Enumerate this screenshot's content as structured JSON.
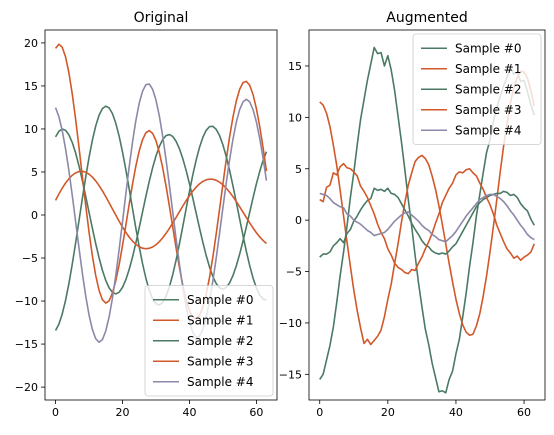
{
  "chart_data": [
    {
      "type": "line",
      "title": "Original",
      "xlabel": "",
      "ylabel": "",
      "xlim": [
        -3.15,
        66.15
      ],
      "ylim": [
        -21.5,
        21.5
      ],
      "xticks": [
        0,
        20,
        40,
        60
      ],
      "yticks": [
        -20,
        -15,
        -10,
        -5,
        0,
        5,
        10,
        15,
        20
      ],
      "grid": false,
      "legend_position": "lower-right",
      "x": [
        0,
        1,
        2,
        3,
        4,
        5,
        6,
        7,
        8,
        9,
        10,
        11,
        12,
        13,
        14,
        15,
        16,
        17,
        18,
        19,
        20,
        21,
        22,
        23,
        24,
        25,
        26,
        27,
        28,
        29,
        30,
        31,
        32,
        33,
        34,
        35,
        36,
        37,
        38,
        39,
        40,
        41,
        42,
        43,
        44,
        45,
        46,
        47,
        48,
        49,
        50,
        51,
        52,
        53,
        54,
        55,
        56,
        57,
        58,
        59,
        60,
        61,
        62,
        63
      ],
      "series": [
        {
          "name": "Sample #0",
          "color": "#4a7a64",
          "values": [
            9.08,
            9.73,
            9.99,
            9.84,
            9.31,
            8.42,
            7.2,
            5.71,
            4.02,
            2.19,
            0.32,
            -1.54,
            -3.33,
            -4.98,
            -6.42,
            -7.6,
            -8.47,
            -9.0,
            -9.17,
            -8.97,
            -8.41,
            -7.52,
            -6.32,
            -4.88,
            -3.23,
            -1.46,
            0.38,
            2.2,
            3.92,
            5.5,
            6.86,
            7.96,
            8.76,
            9.23,
            9.35,
            9.13,
            8.57,
            7.71,
            6.56,
            5.19,
            3.64,
            1.97,
            0.23,
            -1.5,
            -3.17,
            -4.71,
            -6.06,
            -7.17,
            -7.98,
            -8.47,
            -8.62,
            -8.42,
            -7.88,
            -7.03,
            -5.9,
            -4.54,
            -3.01,
            -1.37,
            0.32,
            2.01,
            3.62,
            5.08,
            6.35,
            7.36
          ]
        },
        {
          "name": "Sample #1",
          "color": "#d2582a",
          "values": [
            19.36,
            19.85,
            19.5,
            18.36,
            16.51,
            14.05,
            11.12,
            7.88,
            4.5,
            1.16,
            -1.97,
            -4.74,
            -7.03,
            -8.76,
            -9.84,
            -10.24,
            -9.97,
            -9.08,
            -7.64,
            -5.76,
            -3.56,
            -1.17,
            1.27,
            3.6,
            5.71,
            7.46,
            8.77,
            9.57,
            9.81,
            9.49,
            8.63,
            7.27,
            5.49,
            3.38,
            1.05,
            -1.38,
            -3.8,
            -6.1,
            -8.15,
            -9.85,
            -11.12,
            -11.87,
            -12.06,
            -11.68,
            -10.72,
            -9.22,
            -7.24,
            -4.86,
            -2.17,
            0.7,
            3.62,
            6.46,
            9.09,
            11.39,
            13.26,
            14.61,
            15.38,
            15.53,
            15.06,
            13.99,
            12.36,
            10.26,
            7.8,
            5.1
          ]
        },
        {
          "name": "Sample #2",
          "color": "#4a7a64",
          "values": [
            -13.42,
            -12.69,
            -11.5,
            -9.9,
            -7.94,
            -5.7,
            -3.24,
            -0.67,
            1.91,
            4.39,
            6.68,
            8.69,
            10.35,
            11.59,
            12.36,
            12.65,
            12.45,
            11.78,
            10.66,
            9.16,
            7.33,
            5.26,
            3.03,
            0.73,
            -1.55,
            -3.71,
            -5.68,
            -7.38,
            -8.75,
            -9.74,
            -10.32,
            -10.46,
            -10.16,
            -9.45,
            -8.36,
            -6.94,
            -5.25,
            -3.36,
            -1.35,
            0.71,
            2.74,
            4.66,
            6.39,
            7.86,
            9.02,
            9.84,
            10.27,
            10.31,
            9.95,
            9.22,
            8.15,
            6.78,
            5.17,
            3.38,
            1.47,
            -0.47,
            -2.4,
            -4.23,
            -5.89,
            -7.33,
            -8.48,
            -9.31,
            -9.78,
            -9.88
          ]
        },
        {
          "name": "Sample #3",
          "color": "#d2582a",
          "values": [
            1.7,
            2.44,
            3.12,
            3.72,
            4.22,
            4.62,
            4.9,
            5.05,
            5.08,
            4.98,
            4.75,
            4.41,
            3.96,
            3.42,
            2.81,
            2.14,
            1.43,
            0.7,
            -0.02,
            -0.73,
            -1.4,
            -2.02,
            -2.57,
            -3.04,
            -3.41,
            -3.69,
            -3.86,
            -3.92,
            -3.87,
            -3.72,
            -3.46,
            -3.1,
            -2.66,
            -2.14,
            -1.56,
            -0.94,
            -0.29,
            0.37,
            1.03,
            1.66,
            2.25,
            2.78,
            3.24,
            3.62,
            3.9,
            4.09,
            4.17,
            4.15,
            4.03,
            3.81,
            3.51,
            3.12,
            2.65,
            2.13,
            1.56,
            0.95,
            0.33,
            -0.3,
            -0.92,
            -1.51,
            -2.06,
            -2.55,
            -2.97,
            -3.31
          ]
        },
        {
          "name": "Sample #4",
          "color": "#8c88a8",
          "values": [
            12.48,
            11.42,
            9.8,
            7.67,
            5.12,
            2.26,
            -0.76,
            -3.81,
            -6.74,
            -9.38,
            -11.61,
            -13.3,
            -14.38,
            -14.78,
            -14.48,
            -13.48,
            -11.85,
            -9.66,
            -7.0,
            -4.0,
            -0.8,
            2.46,
            5.61,
            8.5,
            11.0,
            13.0,
            14.4,
            15.15,
            15.22,
            14.61,
            13.36,
            11.52,
            9.18,
            6.45,
            3.47,
            0.36,
            -2.74,
            -5.7,
            -8.38,
            -10.66,
            -12.44,
            -13.64,
            -14.2,
            -14.09,
            -13.32,
            -11.94,
            -10.01,
            -7.65,
            -4.97,
            -2.09,
            0.86,
            3.74,
            6.44,
            8.82,
            10.79,
            12.25,
            13.15,
            13.45,
            13.14,
            12.24,
            10.8,
            8.88,
            6.58,
            3.99
          ]
        }
      ]
    },
    {
      "type": "line",
      "title": "Augmented",
      "xlabel": "",
      "ylabel": "",
      "xlim": [
        -3.15,
        66.15
      ],
      "ylim": [
        -17.5,
        18.5
      ],
      "xticks": [
        0,
        20,
        40,
        60
      ],
      "yticks": [
        -15,
        -10,
        -5,
        0,
        5,
        10,
        15
      ],
      "grid": false,
      "legend_position": "upper-right",
      "x": [
        0,
        1,
        2,
        3,
        4,
        5,
        6,
        7,
        8,
        9,
        10,
        11,
        12,
        13,
        14,
        15,
        16,
        17,
        18,
        19,
        20,
        21,
        22,
        23,
        24,
        25,
        26,
        27,
        28,
        29,
        30,
        31,
        32,
        33,
        34,
        35,
        36,
        37,
        38,
        39,
        40,
        41,
        42,
        43,
        44,
        45,
        46,
        47,
        48,
        49,
        50,
        51,
        52,
        53,
        54,
        55,
        56,
        57,
        58,
        59,
        60,
        61,
        62,
        63
      ],
      "series": [
        {
          "name": "Sample #0",
          "color": "#4a7a64",
          "values": [
            -15.5,
            -15.0,
            -13.6,
            -12.2,
            -10.4,
            -8.0,
            -5.4,
            -3.1,
            -0.6,
            2.2,
            4.6,
            7.3,
            9.8,
            11.7,
            13.6,
            15.2,
            16.8,
            16.2,
            16.3,
            15.0,
            16.0,
            14.6,
            12.6,
            10.1,
            7.6,
            4.9,
            2.0,
            -0.6,
            -3.4,
            -6.1,
            -8.4,
            -10.6,
            -12.1,
            -13.9,
            -15.3,
            -16.7,
            -16.6,
            -16.8,
            -15.5,
            -14.7,
            -13.0,
            -11.6,
            -9.4,
            -7.1,
            -4.5,
            -2.2,
            0.4,
            2.5,
            4.6,
            6.6,
            7.8,
            9.6,
            11.0,
            12.0,
            13.1,
            13.9,
            14.8,
            14.2,
            14.4,
            13.5,
            13.6,
            12.5,
            11.2,
            10.2
          ]
        },
        {
          "name": "Sample #1",
          "color": "#d2582a",
          "values": [
            11.5,
            11.2,
            10.4,
            9.1,
            7.3,
            5.3,
            2.9,
            0.4,
            -2.1,
            -4.5,
            -6.8,
            -8.8,
            -10.5,
            -12.0,
            -11.6,
            -12.1,
            -11.7,
            -11.3,
            -10.7,
            -9.4,
            -7.7,
            -6.2,
            -4.2,
            -2.3,
            -0.2,
            1.7,
            3.4,
            4.6,
            5.7,
            6.1,
            6.3,
            6.0,
            5.4,
            4.3,
            3.0,
            1.4,
            -0.4,
            -2.3,
            -4.2,
            -6.0,
            -7.7,
            -9.1,
            -10.2,
            -10.9,
            -11.2,
            -11.1,
            -10.3,
            -9.1,
            -7.4,
            -5.4,
            -3.1,
            -0.6,
            2.0,
            4.7,
            7.2,
            9.4,
            11.4,
            12.9,
            13.9,
            14.5,
            14.4,
            13.8,
            12.6,
            11.1
          ]
        },
        {
          "name": "Sample #2",
          "color": "#4a7a64",
          "values": [
            -3.6,
            -3.3,
            -3.3,
            -3.1,
            -2.5,
            -2.2,
            -1.8,
            -2.2,
            -1.3,
            -0.9,
            -0.1,
            0.4,
            1.0,
            1.5,
            1.9,
            2.1,
            3.1,
            2.9,
            3.0,
            2.8,
            3.1,
            2.6,
            2.5,
            2.2,
            1.6,
            1.0,
            0.4,
            -0.3,
            -0.9,
            -1.4,
            -2.0,
            -2.4,
            -2.6,
            -3.0,
            -3.2,
            -3.3,
            -3.2,
            -3.3,
            -3.0,
            -2.6,
            -2.3,
            -1.7,
            -1.1,
            -0.5,
            0.1,
            0.7,
            1.3,
            1.7,
            2.0,
            2.2,
            2.4,
            2.5,
            2.6,
            2.6,
            2.8,
            2.7,
            2.4,
            2.5,
            2.2,
            1.6,
            1.2,
            0.9,
            0.1,
            -0.5
          ]
        },
        {
          "name": "Sample #3",
          "color": "#d2582a",
          "values": [
            2.0,
            1.8,
            3.2,
            3.4,
            4.6,
            4.4,
            5.2,
            5.5,
            5.1,
            5.0,
            4.7,
            4.3,
            3.3,
            2.8,
            2.2,
            1.4,
            0.6,
            -0.4,
            -1.2,
            -1.8,
            -2.8,
            -3.4,
            -4.2,
            -4.6,
            -4.8,
            -5.1,
            -5.2,
            -4.8,
            -4.9,
            -4.2,
            -3.6,
            -2.8,
            -2.1,
            -1.3,
            -0.3,
            0.6,
            1.7,
            2.4,
            3.1,
            3.6,
            4.4,
            4.7,
            4.6,
            4.9,
            5.0,
            4.6,
            4.3,
            3.6,
            3.0,
            2.2,
            1.5,
            0.6,
            -0.5,
            -1.3,
            -2.1,
            -2.8,
            -3.2,
            -3.7,
            -3.5,
            -3.9,
            -3.6,
            -3.4,
            -3.1,
            -2.3
          ]
        },
        {
          "name": "Sample #4",
          "color": "#8c88a8",
          "values": [
            2.6,
            2.5,
            2.4,
            2.1,
            1.7,
            1.5,
            1.3,
            1.2,
            0.6,
            0.4,
            0.0,
            -0.2,
            -0.4,
            -0.7,
            -1.0,
            -1.2,
            -1.5,
            -1.4,
            -1.3,
            -1.2,
            -0.9,
            -0.5,
            -0.1,
            0.2,
            0.5,
            0.7,
            0.8,
            0.5,
            0.2,
            -0.1,
            -0.5,
            -0.8,
            -1.0,
            -1.4,
            -1.6,
            -1.9,
            -2.0,
            -2.1,
            -1.8,
            -1.5,
            -1.1,
            -0.6,
            -0.1,
            0.4,
            0.8,
            1.2,
            1.6,
            2.0,
            2.2,
            2.4,
            2.5,
            2.5,
            2.3,
            2.1,
            1.8,
            1.4,
            0.9,
            0.5,
            0.0,
            -0.5,
            -0.9,
            -1.4,
            -1.7,
            -1.9
          ]
        }
      ]
    }
  ]
}
